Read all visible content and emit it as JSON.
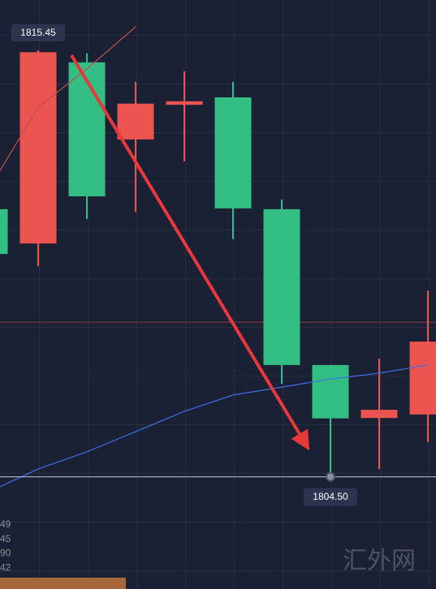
{
  "chart_data": {
    "type": "candlestick",
    "ylim": [
      1801.62,
      1816.74
    ],
    "up_color": "#ec5450",
    "down_color": "#33be84",
    "open": [
      1811.37,
      1810.49,
      1815.14,
      1813.16,
      1814.05,
      1814.24,
      1811.37,
      1807.37,
      1806.01,
      1806.1
    ],
    "close": [
      1810.22,
      1815.4,
      1811.7,
      1814.08,
      1814.14,
      1811.39,
      1807.37,
      1806.0,
      1806.22,
      1807.97
    ],
    "high": [
      1811.5,
      1815.45,
      1815.37,
      1814.64,
      1814.91,
      1814.64,
      1811.62,
      1807.37,
      1807.53,
      1809.28
    ],
    "low": [
      1810.1,
      1809.91,
      1811.12,
      1811.3,
      1812.6,
      1810.6,
      1806.89,
      1804.5,
      1804.7,
      1805.39
    ],
    "lines": [
      {
        "color": "#3d6ee6",
        "values": [
          1804.12,
          1804.7,
          1805.14,
          1805.66,
          1806.18,
          1806.6,
          1806.8,
          1807.01,
          1807.16,
          1807.37
        ]
      },
      {
        "color": "#c0504d",
        "values": [
          1811.91,
          1813.99,
          1814.97,
          1816.05,
          null,
          null,
          null,
          null,
          null,
          null
        ]
      }
    ],
    "hlines": [
      {
        "value": 1808.47,
        "color": "#8e3a46"
      }
    ],
    "markers": [
      {
        "value": 1815.45,
        "label": "1815.45"
      },
      {
        "value": 1804.5,
        "label": "1804.50"
      }
    ],
    "axis_fragments": [
      "49",
      "45",
      "90",
      "42"
    ],
    "watermark": "汇外网"
  }
}
